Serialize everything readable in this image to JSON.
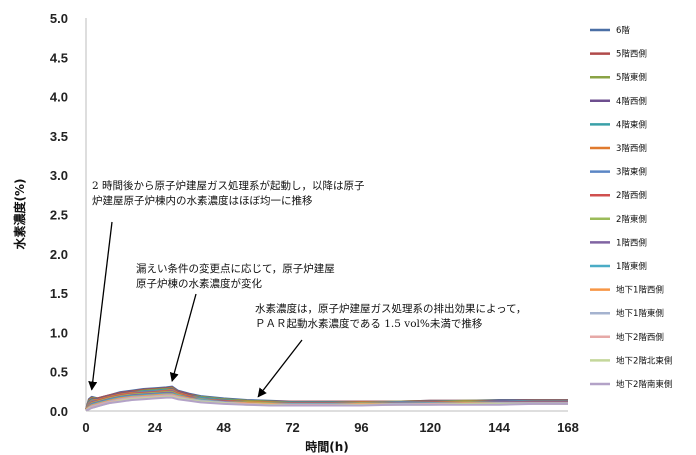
{
  "chart_data": {
    "type": "line",
    "title": "",
    "xlabel": "時間(h)",
    "ylabel": "水素濃度(%)",
    "xlim": [
      0,
      168
    ],
    "ylim": [
      0,
      5
    ],
    "xticks": [
      "0",
      "24",
      "48",
      "72",
      "96",
      "120",
      "144",
      "168"
    ],
    "yticks": [
      "0.0",
      "0.5",
      "1.0",
      "1.5",
      "2.0",
      "2.5",
      "3.0",
      "3.5",
      "4.0",
      "4.5",
      "5.0"
    ],
    "grid": false,
    "legend_position": "right",
    "x": [
      0,
      1,
      2,
      3,
      4,
      6,
      8,
      12,
      16,
      20,
      24,
      28,
      30,
      32,
      36,
      40,
      48,
      56,
      64,
      72,
      84,
      96,
      108,
      120,
      132,
      144,
      156,
      168
    ],
    "series": [
      {
        "name": "6階",
        "color": "#4a6fa5",
        "values": [
          0.02,
          0.15,
          0.18,
          0.17,
          0.16,
          0.18,
          0.2,
          0.24,
          0.26,
          0.28,
          0.29,
          0.3,
          0.31,
          0.26,
          0.22,
          0.19,
          0.16,
          0.14,
          0.13,
          0.12,
          0.12,
          0.12,
          0.12,
          0.13,
          0.13,
          0.14,
          0.14,
          0.14
        ]
      },
      {
        "name": "5階西側",
        "color": "#b04a4a",
        "values": [
          0.02,
          0.14,
          0.17,
          0.16,
          0.16,
          0.18,
          0.2,
          0.23,
          0.25,
          0.27,
          0.28,
          0.29,
          0.3,
          0.25,
          0.21,
          0.18,
          0.15,
          0.13,
          0.12,
          0.12,
          0.12,
          0.12,
          0.12,
          0.13,
          0.13,
          0.13,
          0.14,
          0.14
        ]
      },
      {
        "name": "5階東側",
        "color": "#8aa345",
        "values": [
          0.02,
          0.13,
          0.16,
          0.16,
          0.15,
          0.17,
          0.19,
          0.22,
          0.24,
          0.26,
          0.27,
          0.28,
          0.29,
          0.24,
          0.2,
          0.18,
          0.15,
          0.13,
          0.12,
          0.11,
          0.11,
          0.11,
          0.12,
          0.12,
          0.13,
          0.13,
          0.13,
          0.13
        ]
      },
      {
        "name": "4階西側",
        "color": "#6e4f8f",
        "values": [
          0.02,
          0.12,
          0.15,
          0.15,
          0.15,
          0.17,
          0.19,
          0.22,
          0.24,
          0.25,
          0.26,
          0.27,
          0.28,
          0.24,
          0.2,
          0.17,
          0.14,
          0.12,
          0.11,
          0.11,
          0.11,
          0.11,
          0.11,
          0.12,
          0.12,
          0.13,
          0.13,
          0.13
        ]
      },
      {
        "name": "4階東側",
        "color": "#3aa0a8",
        "values": [
          0.02,
          0.11,
          0.14,
          0.14,
          0.14,
          0.16,
          0.18,
          0.21,
          0.23,
          0.25,
          0.26,
          0.27,
          0.27,
          0.23,
          0.19,
          0.17,
          0.14,
          0.12,
          0.11,
          0.11,
          0.11,
          0.11,
          0.11,
          0.12,
          0.12,
          0.12,
          0.13,
          0.13
        ]
      },
      {
        "name": "3階西側",
        "color": "#e07a2e",
        "values": [
          0.02,
          0.1,
          0.13,
          0.14,
          0.14,
          0.16,
          0.18,
          0.21,
          0.23,
          0.24,
          0.25,
          0.26,
          0.27,
          0.23,
          0.19,
          0.16,
          0.13,
          0.12,
          0.11,
          0.1,
          0.1,
          0.11,
          0.11,
          0.11,
          0.12,
          0.12,
          0.12,
          0.12
        ]
      },
      {
        "name": "3階東側",
        "color": "#5b86c5",
        "values": [
          0.02,
          0.09,
          0.12,
          0.13,
          0.13,
          0.15,
          0.17,
          0.2,
          0.22,
          0.24,
          0.25,
          0.25,
          0.26,
          0.22,
          0.18,
          0.16,
          0.13,
          0.11,
          0.1,
          0.1,
          0.1,
          0.1,
          0.11,
          0.11,
          0.11,
          0.12,
          0.12,
          0.12
        ]
      },
      {
        "name": "2階西側",
        "color": "#d0504f",
        "values": [
          0.02,
          0.08,
          0.11,
          0.12,
          0.13,
          0.15,
          0.17,
          0.2,
          0.22,
          0.23,
          0.24,
          0.25,
          0.25,
          0.22,
          0.18,
          0.15,
          0.13,
          0.11,
          0.1,
          0.1,
          0.1,
          0.1,
          0.1,
          0.11,
          0.11,
          0.11,
          0.12,
          0.12
        ]
      },
      {
        "name": "2階東側",
        "color": "#9bbb59",
        "values": [
          0.02,
          0.07,
          0.1,
          0.11,
          0.12,
          0.14,
          0.16,
          0.19,
          0.21,
          0.22,
          0.23,
          0.24,
          0.24,
          0.21,
          0.17,
          0.15,
          0.12,
          0.11,
          0.1,
          0.09,
          0.09,
          0.1,
          0.1,
          0.1,
          0.11,
          0.11,
          0.11,
          0.11
        ]
      },
      {
        "name": "1階西側",
        "color": "#8064a2",
        "values": [
          0.02,
          0.06,
          0.09,
          0.1,
          0.11,
          0.13,
          0.15,
          0.18,
          0.2,
          0.21,
          0.22,
          0.23,
          0.23,
          0.2,
          0.17,
          0.14,
          0.12,
          0.1,
          0.09,
          0.09,
          0.09,
          0.09,
          0.1,
          0.1,
          0.1,
          0.11,
          0.11,
          0.11
        ]
      },
      {
        "name": "1階東側",
        "color": "#4bacc6",
        "values": [
          0.02,
          0.05,
          0.08,
          0.09,
          0.1,
          0.12,
          0.14,
          0.17,
          0.19,
          0.2,
          0.21,
          0.22,
          0.22,
          0.2,
          0.16,
          0.14,
          0.11,
          0.1,
          0.09,
          0.09,
          0.09,
          0.09,
          0.09,
          0.1,
          0.1,
          0.1,
          0.1,
          0.1
        ]
      },
      {
        "name": "地下1階西側",
        "color": "#f79646",
        "values": [
          0.02,
          0.05,
          0.07,
          0.08,
          0.09,
          0.11,
          0.13,
          0.16,
          0.18,
          0.19,
          0.2,
          0.21,
          0.21,
          0.19,
          0.16,
          0.13,
          0.11,
          0.1,
          0.09,
          0.08,
          0.08,
          0.09,
          0.09,
          0.09,
          0.1,
          0.1,
          0.1,
          0.1
        ]
      },
      {
        "name": "地下1階東側",
        "color": "#a5b3cf",
        "values": [
          0.01,
          0.04,
          0.06,
          0.07,
          0.08,
          0.1,
          0.12,
          0.15,
          0.17,
          0.18,
          0.19,
          0.2,
          0.2,
          0.18,
          0.15,
          0.13,
          0.11,
          0.09,
          0.08,
          0.08,
          0.08,
          0.08,
          0.09,
          0.09,
          0.09,
          0.1,
          0.1,
          0.1
        ]
      },
      {
        "name": "地下2階西側",
        "color": "#e6a9a7",
        "values": [
          0.01,
          0.03,
          0.05,
          0.06,
          0.07,
          0.09,
          0.11,
          0.14,
          0.16,
          0.17,
          0.18,
          0.19,
          0.19,
          0.17,
          0.14,
          0.12,
          0.1,
          0.09,
          0.08,
          0.08,
          0.08,
          0.08,
          0.08,
          0.09,
          0.09,
          0.09,
          0.09,
          0.09
        ]
      },
      {
        "name": "地下2階北東側",
        "color": "#c4d79b",
        "values": [
          0.01,
          0.03,
          0.04,
          0.05,
          0.06,
          0.08,
          0.1,
          0.13,
          0.15,
          0.16,
          0.17,
          0.18,
          0.18,
          0.16,
          0.14,
          0.12,
          0.1,
          0.08,
          0.08,
          0.07,
          0.07,
          0.08,
          0.08,
          0.08,
          0.09,
          0.09,
          0.09,
          0.09
        ]
      },
      {
        "name": "地下2階南東側",
        "color": "#b3a2c7",
        "values": [
          0.01,
          0.02,
          0.04,
          0.05,
          0.06,
          0.08,
          0.1,
          0.12,
          0.14,
          0.15,
          0.16,
          0.17,
          0.17,
          0.15,
          0.13,
          0.11,
          0.09,
          0.08,
          0.07,
          0.07,
          0.07,
          0.07,
          0.08,
          0.08,
          0.08,
          0.08,
          0.09,
          0.09
        ]
      }
    ],
    "annotations": [
      {
        "lines": [
          "2 時間後から原子炉建屋ガス処理系が起動し，以降は原子",
          "炉建屋原子炉棟内の水素濃度はほぼ均一に推移"
        ],
        "point_x": 2,
        "point_y": 0.22
      },
      {
        "lines": [
          "漏えい条件の変更点に応じて，原子炉建屋",
          "原子炉棟の水素濃度が変化"
        ],
        "point_x": 30,
        "point_y": 0.33
      },
      {
        "lines": [
          "水素濃度は，原子炉建屋ガス処理系の排出効果によって，",
          "ＰＡＲ起動水素濃度である 1.5 vol%未満で推移"
        ],
        "point_x": 60,
        "point_y": 0.13
      }
    ]
  }
}
